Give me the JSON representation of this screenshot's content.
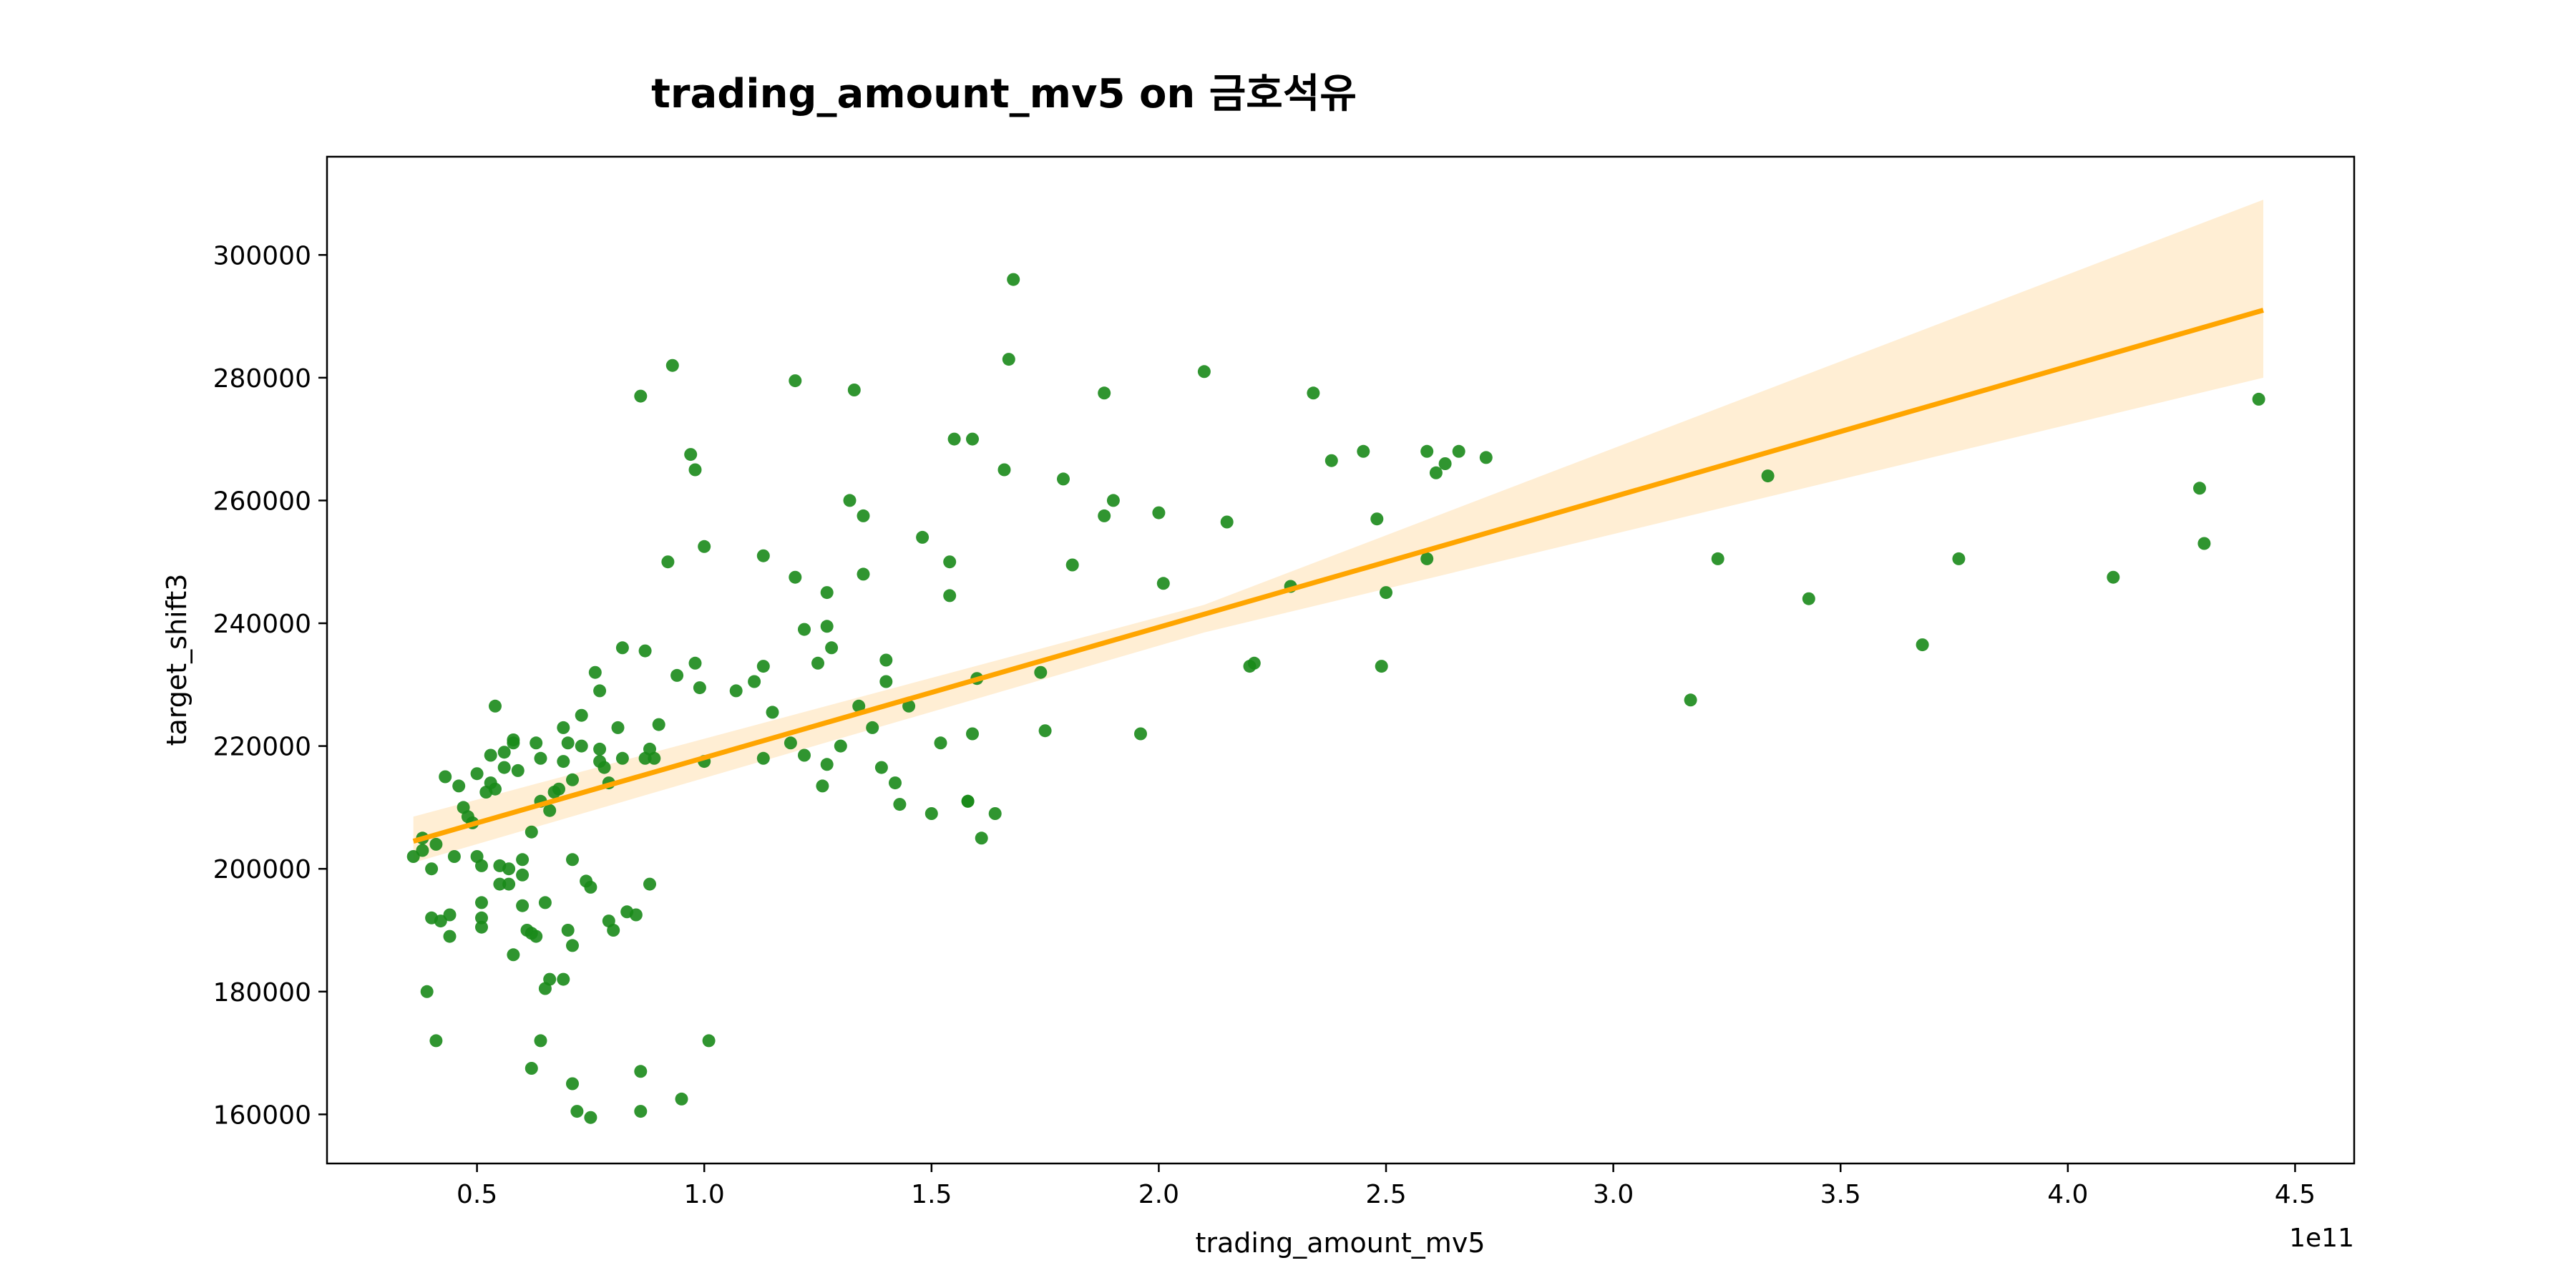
{
  "chart_data": {
    "type": "scatter",
    "title": "trading_amount_mv5 on 금호석유",
    "xlabel": "trading_amount_mv5",
    "ylabel": "target_shift3",
    "x_offset_text": "1e11",
    "xlim": [
      0.17,
      4.63
    ],
    "ylim": [
      152000,
      316000
    ],
    "x_ticks": [
      0.5,
      1.0,
      1.5,
      2.0,
      2.5,
      3.0,
      3.5,
      4.0,
      4.5
    ],
    "x_tick_labels": [
      "0.5",
      "1.0",
      "1.5",
      "2.0",
      "2.5",
      "3.0",
      "3.5",
      "4.0",
      "4.5"
    ],
    "y_ticks": [
      160000,
      180000,
      200000,
      220000,
      240000,
      260000,
      280000,
      300000
    ],
    "y_tick_labels": [
      "160000",
      "180000",
      "200000",
      "220000",
      "240000",
      "260000",
      "280000",
      "300000"
    ],
    "colors": {
      "points": "#1a8a1a",
      "line": "#ffa500",
      "band": "#ffebcc"
    },
    "regression": {
      "x_start": 0.36,
      "x_end": 4.43,
      "y_start": 204500,
      "y_end": 291000,
      "ci_lower_start": 201000,
      "ci_upper_start": 208500,
      "ci_lower_mid": 238500,
      "ci_upper_mid": 243000,
      "x_mid": 2.1,
      "ci_lower_end": 280000,
      "ci_upper_end": 309000
    },
    "points": [
      [
        0.36,
        202000
      ],
      [
        0.38,
        205000
      ],
      [
        0.38,
        203000
      ],
      [
        0.39,
        180000
      ],
      [
        0.4,
        200000
      ],
      [
        0.4,
        192000
      ],
      [
        0.41,
        172000
      ],
      [
        0.41,
        204000
      ],
      [
        0.42,
        191500
      ],
      [
        0.43,
        215000
      ],
      [
        0.44,
        192500
      ],
      [
        0.44,
        189000
      ],
      [
        0.45,
        202000
      ],
      [
        0.46,
        213500
      ],
      [
        0.47,
        210000
      ],
      [
        0.48,
        208500
      ],
      [
        0.49,
        207500
      ],
      [
        0.5,
        202000
      ],
      [
        0.5,
        215500
      ],
      [
        0.51,
        192000
      ],
      [
        0.51,
        190500
      ],
      [
        0.51,
        194500
      ],
      [
        0.51,
        200500
      ],
      [
        0.52,
        212500
      ],
      [
        0.53,
        214000
      ],
      [
        0.53,
        218500
      ],
      [
        0.54,
        226500
      ],
      [
        0.54,
        213000
      ],
      [
        0.55,
        197500
      ],
      [
        0.55,
        200500
      ],
      [
        0.56,
        219000
      ],
      [
        0.56,
        216500
      ],
      [
        0.57,
        200000
      ],
      [
        0.57,
        197500
      ],
      [
        0.58,
        220500
      ],
      [
        0.58,
        221000
      ],
      [
        0.58,
        186000
      ],
      [
        0.59,
        216000
      ],
      [
        0.6,
        201500
      ],
      [
        0.6,
        199000
      ],
      [
        0.6,
        194000
      ],
      [
        0.61,
        190000
      ],
      [
        0.62,
        189500
      ],
      [
        0.62,
        167500
      ],
      [
        0.62,
        206000
      ],
      [
        0.63,
        220500
      ],
      [
        0.63,
        189000
      ],
      [
        0.64,
        172000
      ],
      [
        0.64,
        218000
      ],
      [
        0.64,
        211000
      ],
      [
        0.65,
        180500
      ],
      [
        0.65,
        194500
      ],
      [
        0.66,
        209500
      ],
      [
        0.66,
        182000
      ],
      [
        0.67,
        212500
      ],
      [
        0.68,
        213000
      ],
      [
        0.69,
        223000
      ],
      [
        0.69,
        182000
      ],
      [
        0.69,
        217500
      ],
      [
        0.7,
        190000
      ],
      [
        0.7,
        220500
      ],
      [
        0.71,
        187500
      ],
      [
        0.71,
        201500
      ],
      [
        0.71,
        214500
      ],
      [
        0.71,
        165000
      ],
      [
        0.72,
        160500
      ],
      [
        0.73,
        220000
      ],
      [
        0.73,
        225000
      ],
      [
        0.74,
        198000
      ],
      [
        0.75,
        197000
      ],
      [
        0.75,
        159500
      ],
      [
        0.76,
        232000
      ],
      [
        0.77,
        229000
      ],
      [
        0.77,
        217500
      ],
      [
        0.77,
        219500
      ],
      [
        0.78,
        216500
      ],
      [
        0.79,
        214000
      ],
      [
        0.79,
        191500
      ],
      [
        0.8,
        190000
      ],
      [
        0.81,
        223000
      ],
      [
        0.82,
        236000
      ],
      [
        0.82,
        218000
      ],
      [
        0.83,
        193000
      ],
      [
        0.85,
        192500
      ],
      [
        0.86,
        277000
      ],
      [
        0.86,
        167000
      ],
      [
        0.86,
        160500
      ],
      [
        0.87,
        235500
      ],
      [
        0.87,
        218000
      ],
      [
        0.88,
        219500
      ],
      [
        0.88,
        197500
      ],
      [
        0.89,
        218000
      ],
      [
        0.9,
        223500
      ],
      [
        0.92,
        250000
      ],
      [
        0.93,
        282000
      ],
      [
        0.94,
        231500
      ],
      [
        0.95,
        162500
      ],
      [
        0.97,
        267500
      ],
      [
        0.98,
        265000
      ],
      [
        0.98,
        233500
      ],
      [
        0.99,
        229500
      ],
      [
        1.0,
        217500
      ],
      [
        1.0,
        252500
      ],
      [
        1.01,
        172000
      ],
      [
        1.07,
        229000
      ],
      [
        1.11,
        230500
      ],
      [
        1.13,
        218000
      ],
      [
        1.13,
        251000
      ],
      [
        1.13,
        233000
      ],
      [
        1.15,
        225500
      ],
      [
        1.19,
        220500
      ],
      [
        1.2,
        279500
      ],
      [
        1.2,
        247500
      ],
      [
        1.22,
        239000
      ],
      [
        1.22,
        218500
      ],
      [
        1.25,
        233500
      ],
      [
        1.26,
        213500
      ],
      [
        1.27,
        217000
      ],
      [
        1.27,
        239500
      ],
      [
        1.27,
        245000
      ],
      [
        1.28,
        236000
      ],
      [
        1.3,
        220000
      ],
      [
        1.32,
        260000
      ],
      [
        1.33,
        278000
      ],
      [
        1.34,
        226500
      ],
      [
        1.35,
        248000
      ],
      [
        1.35,
        257500
      ],
      [
        1.37,
        223000
      ],
      [
        1.39,
        216500
      ],
      [
        1.4,
        234000
      ],
      [
        1.4,
        230500
      ],
      [
        1.42,
        214000
      ],
      [
        1.43,
        210500
      ],
      [
        1.45,
        226500
      ],
      [
        1.48,
        254000
      ],
      [
        1.5,
        209000
      ],
      [
        1.52,
        220500
      ],
      [
        1.54,
        250000
      ],
      [
        1.54,
        244500
      ],
      [
        1.55,
        270000
      ],
      [
        1.58,
        211000
      ],
      [
        1.58,
        211000
      ],
      [
        1.59,
        222000
      ],
      [
        1.59,
        270000
      ],
      [
        1.6,
        231000
      ],
      [
        1.61,
        205000
      ],
      [
        1.64,
        209000
      ],
      [
        1.66,
        265000
      ],
      [
        1.67,
        283000
      ],
      [
        1.68,
        296000
      ],
      [
        1.74,
        232000
      ],
      [
        1.75,
        222500
      ],
      [
        1.79,
        263500
      ],
      [
        1.81,
        249500
      ],
      [
        1.88,
        277500
      ],
      [
        1.88,
        257500
      ],
      [
        1.9,
        260000
      ],
      [
        1.96,
        222000
      ],
      [
        2.0,
        258000
      ],
      [
        2.01,
        246500
      ],
      [
        2.1,
        281000
      ],
      [
        2.15,
        256500
      ],
      [
        2.2,
        233000
      ],
      [
        2.21,
        233500
      ],
      [
        2.29,
        246000
      ],
      [
        2.34,
        277500
      ],
      [
        2.38,
        266500
      ],
      [
        2.45,
        268000
      ],
      [
        2.48,
        257000
      ],
      [
        2.49,
        233000
      ],
      [
        2.5,
        245000
      ],
      [
        2.59,
        268000
      ],
      [
        2.59,
        250500
      ],
      [
        2.61,
        264500
      ],
      [
        2.63,
        266000
      ],
      [
        2.66,
        268000
      ],
      [
        2.72,
        267000
      ],
      [
        3.17,
        227500
      ],
      [
        3.23,
        250500
      ],
      [
        3.34,
        264000
      ],
      [
        3.43,
        244000
      ],
      [
        3.68,
        236500
      ],
      [
        3.76,
        250500
      ],
      [
        4.1,
        247500
      ],
      [
        4.29,
        262000
      ],
      [
        4.3,
        253000
      ],
      [
        4.42,
        276500
      ]
    ]
  }
}
